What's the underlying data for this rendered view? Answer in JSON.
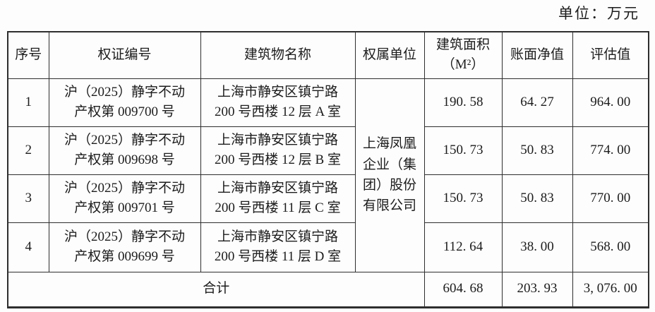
{
  "unit_label": "单位：万元",
  "table": {
    "headers": {
      "seq": "序号",
      "cert": "权证编号",
      "building": "建筑物名称",
      "owner": "权属单位",
      "area_line1": "建筑面积",
      "area_line2": "（M²）",
      "book_value": "账面净值",
      "appraisal": "评估值"
    },
    "owner_name": "上海凤凰企业（集团）股份有限公司",
    "rows": [
      {
        "seq": "1",
        "cert": [
          "沪（2025）静字不动",
          "产权第 009700 号"
        ],
        "building": [
          "上海市静安区镇宁路",
          "200 号西楼 12 层 A 室"
        ],
        "area": "190. 58",
        "book_value": "64. 27",
        "appraisal": "964. 00"
      },
      {
        "seq": "2",
        "cert": [
          "沪（2025）静字不动",
          "产权第 009698 号"
        ],
        "building": [
          "上海市静安区镇宁路",
          "200 号西楼 12 层 B 室"
        ],
        "area": "150. 73",
        "book_value": "50. 83",
        "appraisal": "774. 00"
      },
      {
        "seq": "3",
        "cert": [
          "沪（2025）静字不动",
          "产权第 009701 号"
        ],
        "building": [
          "上海市静安区镇宁路",
          "200 号西楼 11 层 C 室"
        ],
        "area": "150. 73",
        "book_value": "50. 83",
        "appraisal": "770. 00"
      },
      {
        "seq": "4",
        "cert": [
          "沪（2025）静字不动",
          "产权第 009699 号"
        ],
        "building": [
          "上海市静安区镇宁路",
          "200 号西楼 11 层 D 室"
        ],
        "area": "112. 64",
        "book_value": "38. 00",
        "appraisal": "568. 00"
      }
    ],
    "total": {
      "label": "合计",
      "area": "604. 68",
      "book_value": "203. 93",
      "appraisal": "3, 076. 00"
    }
  }
}
